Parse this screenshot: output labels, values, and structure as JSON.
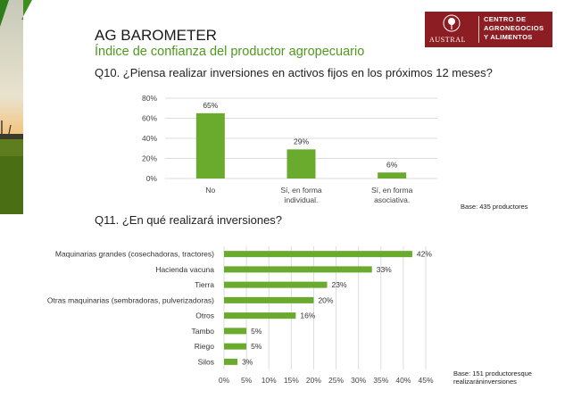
{
  "header": {
    "title": "AG BAROMETER",
    "subtitle": "Índice de confianza del productor agropecuario"
  },
  "logo": {
    "university": "AUSTRAL",
    "line1": "CENTRO DE",
    "line2": "AGRONEGOCIOS",
    "line3": "Y ALIMENTOS",
    "color": "#8c1d23"
  },
  "colors": {
    "bar": "#6aab2e",
    "subtitle": "#4d9a1f"
  },
  "chart_data": [
    {
      "type": "bar",
      "title": "Q10. ¿Piensa realizar inversiones en activos fijos en los próximos 12 meses?",
      "categories": [
        [
          "No"
        ],
        [
          "Sí, en forma",
          "individual."
        ],
        [
          "Sí, en forma",
          "asociativa."
        ]
      ],
      "values": [
        65,
        29,
        6
      ],
      "value_labels": [
        "65%",
        "29%",
        "6%"
      ],
      "yticks": [
        "0%",
        "20%",
        "40%",
        "60%",
        "80%"
      ],
      "ylim": [
        0,
        80
      ],
      "grid": true,
      "note": "Base: 435 productores"
    },
    {
      "type": "bar",
      "orientation": "horizontal",
      "title": "Q11. ¿En qué realizará inversiones?",
      "categories": [
        "Maquinarias grandes (cosechadoras, tractores)",
        "Hacienda vacuna",
        "Tierra",
        "Otras maquinarias (sembradoras, pulverizadoras)",
        "Otros",
        "Tambo",
        "Riego",
        "Silos"
      ],
      "values": [
        42,
        33,
        23,
        20,
        16,
        5,
        5,
        3
      ],
      "value_labels": [
        "42%",
        "33%",
        "23%",
        "20%",
        "16%",
        "5%",
        "5%",
        "3%"
      ],
      "xticks": [
        "0%",
        "5%",
        "10%",
        "15%",
        "20%",
        "25%",
        "30%",
        "35%",
        "40%",
        "45%"
      ],
      "xlim": [
        0,
        45
      ],
      "grid": true,
      "note": [
        "Base: 151 productoresque",
        "realizaráninversiones"
      ]
    }
  ]
}
